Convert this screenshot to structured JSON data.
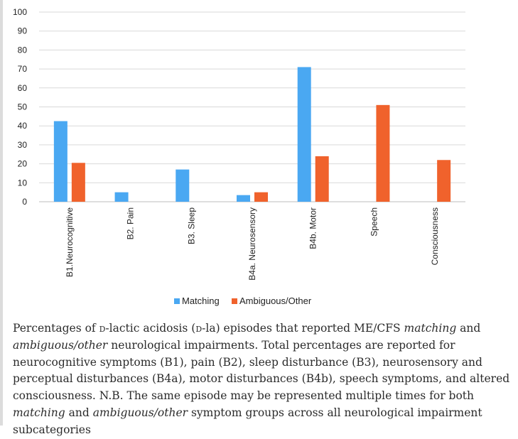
{
  "chart_data": {
    "type": "bar",
    "categories": [
      "B1.Neurocognitive",
      "B2. Pain",
      "B3. Sleep",
      "B4a. Neurosensory",
      "B4b. Motor",
      "Speech",
      "Consciousness"
    ],
    "series": [
      {
        "name": "Matching",
        "color": "#4aa8f2",
        "values": [
          42.5,
          5,
          17,
          3.5,
          71,
          null,
          null
        ]
      },
      {
        "name": "Ambiguous/Other",
        "color": "#f0622c",
        "values": [
          20.5,
          null,
          null,
          5,
          24,
          51,
          22
        ]
      }
    ],
    "ylim": [
      0,
      100
    ],
    "yticks": [
      "0",
      "10",
      "20",
      "30",
      "40",
      "50",
      "60",
      "70",
      "80",
      "90",
      "100"
    ],
    "grid": true,
    "legend_position": "bottom-center",
    "title": "",
    "xlabel": "",
    "ylabel": ""
  },
  "caption": {
    "p1": "Percentages of ",
    "sc1": "d",
    "p2": "-lactic acidosis (",
    "sc2": "d",
    "p3": "-la) episodes that reported ME/CFS ",
    "i1": "matching",
    "p4": " and ",
    "i2": "ambiguous/other",
    "p5": " neurological impairments. Total percentages are reported for neurocognitive symptoms (B1), pain (B2), sleep disturbance (B3), neurosensory and perceptual disturbances (B4a), motor disturbances (B4b), speech symptoms, and altered consciousness. N.B. The same episode may be represented multiple times for both ",
    "i3": "matching",
    "p6": " and ",
    "i4": "ambiguous/other",
    "p7": " symptom groups across all neurological impairment subcategories"
  }
}
